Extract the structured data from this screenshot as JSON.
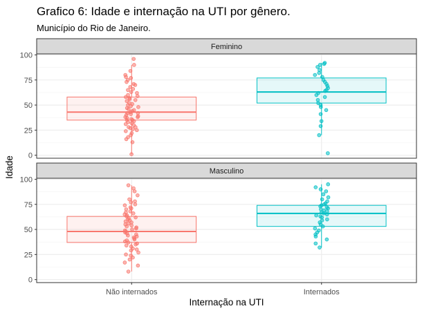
{
  "chart_data": {
    "type": "boxplot",
    "title": "Grafico 6: Idade e internação na UTI por gênero.",
    "subtitle": "Município do Rio de Janeiro.",
    "xlabel": "Internação na UTI",
    "ylabel": "Idade",
    "categories": [
      "Não internados",
      "Internados"
    ],
    "yticks": [
      0,
      25,
      50,
      75,
      100
    ],
    "ylim": [
      -3,
      101
    ],
    "grid": true,
    "legend": "none",
    "colors": {
      "Não internados": "#F8766D",
      "Internados": "#00BFC4"
    },
    "panels": [
      {
        "label": "Feminino",
        "boxes": [
          {
            "category": "Não internados",
            "whisker_low": 1,
            "q1": 35,
            "median": 43,
            "q3": 58,
            "whisker_high": 90
          },
          {
            "category": "Internados",
            "whisker_low": 20,
            "q1": 52,
            "median": 63,
            "q3": 77,
            "whisker_high": 92
          }
        ],
        "points": [
          {
            "category": "Não internados",
            "values": [
              1,
              13,
              16,
              18,
              20,
              22,
              24,
              25,
              26,
              27,
              28,
              28,
              30,
              31,
              32,
              33,
              34,
              35,
              35,
              36,
              37,
              38,
              38,
              39,
              40,
              41,
              42,
              42,
              43,
              44,
              45,
              46,
              47,
              48,
              49,
              50,
              51,
              52,
              54,
              55,
              56,
              57,
              58,
              59,
              60,
              62,
              63,
              65,
              66,
              68,
              70,
              71,
              73,
              75,
              77,
              78,
              80,
              84,
              90,
              96
            ]
          },
          {
            "category": "Internados",
            "values": [
              2,
              20,
              29,
              34,
              41,
              45,
              48,
              50,
              52,
              55,
              58,
              60,
              62,
              64,
              65,
              67,
              69,
              71,
              73,
              75,
              78,
              80,
              82,
              85,
              88,
              90,
              91,
              92
            ]
          }
        ]
      },
      {
        "label": "Masculino",
        "boxes": [
          {
            "category": "Não internados",
            "whisker_low": 8,
            "q1": 37,
            "median": 48,
            "q3": 63,
            "whisker_high": 94
          },
          {
            "category": "Internados",
            "whisker_low": 32,
            "q1": 53,
            "median": 66,
            "q3": 74,
            "whisker_high": 95
          }
        ],
        "points": [
          {
            "category": "Não internados",
            "values": [
              8,
              14,
              17,
              20,
              22,
              24,
              25,
              27,
              29,
              30,
              31,
              33,
              34,
              35,
              36,
              37,
              38,
              39,
              40,
              41,
              42,
              43,
              44,
              45,
              46,
              47,
              48,
              49,
              50,
              51,
              52,
              53,
              54,
              55,
              56,
              57,
              58,
              59,
              60,
              61,
              62,
              63,
              64,
              65,
              66,
              67,
              68,
              70,
              71,
              72,
              74,
              75,
              77,
              78,
              80,
              84,
              88,
              91,
              94
            ]
          },
          {
            "category": "Internados",
            "values": [
              32,
              36,
              40,
              43,
              45,
              47,
              49,
              51,
              53,
              55,
              57,
              59,
              60,
              62,
              63,
              64,
              65,
              66,
              67,
              68,
              69,
              70,
              71,
              72,
              73,
              74,
              75,
              76,
              78,
              80,
              82,
              85,
              88,
              90,
              92,
              95
            ]
          }
        ]
      }
    ]
  }
}
